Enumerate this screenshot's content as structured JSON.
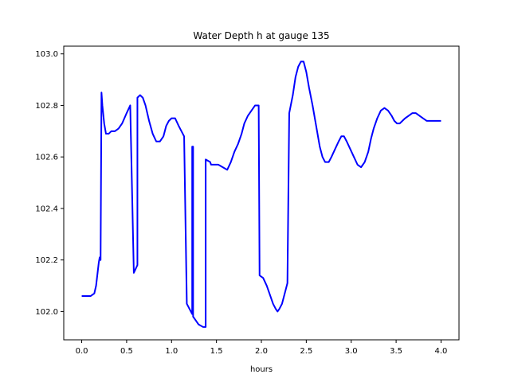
{
  "chart_data": {
    "type": "line",
    "title": "Water Depth h at gauge 135",
    "xlabel": "hours",
    "ylabel": "",
    "xlim": [
      -0.2,
      4.2
    ],
    "ylim": [
      101.89,
      103.03
    ],
    "xticks": [
      0.0,
      0.5,
      1.0,
      1.5,
      2.0,
      2.5,
      3.0,
      3.5,
      4.0
    ],
    "xtick_labels": [
      "0.0",
      "0.5",
      "1.0",
      "1.5",
      "2.0",
      "2.5",
      "3.0",
      "3.5",
      "4.0"
    ],
    "yticks": [
      102.0,
      102.2,
      102.4,
      102.6,
      102.8,
      103.0
    ],
    "ytick_labels": [
      "102.0",
      "102.2",
      "102.4",
      "102.6",
      "102.8",
      "103.0"
    ],
    "grid": false,
    "color": "#0000ff",
    "series": [
      {
        "x": [
          0.0,
          0.1,
          0.14,
          0.16,
          0.19,
          0.2,
          0.21,
          0.22,
          0.22,
          0.23,
          0.25,
          0.27,
          0.3,
          0.33,
          0.37,
          0.41,
          0.45,
          0.5,
          0.54,
          0.58,
          0.58,
          0.62,
          0.62,
          0.65,
          0.68,
          0.71,
          0.75,
          0.79,
          0.83,
          0.87,
          0.91,
          0.94,
          0.97,
          1.0,
          1.04,
          1.08,
          1.11,
          1.14,
          1.17,
          1.17,
          1.2,
          1.23,
          1.23,
          1.24,
          1.24,
          1.26,
          1.3,
          1.35,
          1.37,
          1.38,
          1.38,
          1.43,
          1.44,
          1.47,
          1.52,
          1.57,
          1.62,
          1.66,
          1.7,
          1.74,
          1.78,
          1.81,
          1.85,
          1.89,
          1.93,
          1.97,
          1.98,
          2.02,
          2.06,
          2.1,
          2.13,
          2.16,
          2.18,
          2.2,
          2.23,
          2.26,
          2.29,
          2.31,
          2.31,
          2.35,
          2.38,
          2.41,
          2.44,
          2.47,
          2.5,
          2.53,
          2.57,
          2.61,
          2.65,
          2.68,
          2.71,
          2.75,
          2.78,
          2.82,
          2.86,
          2.89,
          2.92,
          2.95,
          2.99,
          3.03,
          3.07,
          3.11,
          3.15,
          3.19,
          3.22,
          3.25,
          3.29,
          3.33,
          3.37,
          3.41,
          3.45,
          3.48,
          3.51,
          3.54,
          3.57,
          3.6,
          3.64,
          3.68,
          3.72,
          3.76,
          3.8,
          3.84,
          3.88,
          3.92,
          3.96,
          4.0
        ],
        "y": [
          102.06,
          102.06,
          102.07,
          102.1,
          102.19,
          102.21,
          102.2,
          102.85,
          102.85,
          102.8,
          102.73,
          102.69,
          102.69,
          102.7,
          102.7,
          102.71,
          102.73,
          102.77,
          102.8,
          102.15,
          102.15,
          102.18,
          102.83,
          102.84,
          102.83,
          102.8,
          102.74,
          102.69,
          102.66,
          102.66,
          102.68,
          102.72,
          102.74,
          102.75,
          102.75,
          102.72,
          102.7,
          102.68,
          102.03,
          102.03,
          102.01,
          101.99,
          102.64,
          102.64,
          101.98,
          101.97,
          101.95,
          101.94,
          101.94,
          101.94,
          102.59,
          102.58,
          102.57,
          102.57,
          102.57,
          102.56,
          102.55,
          102.58,
          102.62,
          102.65,
          102.69,
          102.73,
          102.76,
          102.78,
          102.8,
          102.8,
          102.14,
          102.13,
          102.1,
          102.06,
          102.03,
          102.01,
          102.0,
          102.01,
          102.03,
          102.07,
          102.11,
          102.77,
          102.77,
          102.84,
          102.91,
          102.95,
          102.97,
          102.97,
          102.93,
          102.87,
          102.8,
          102.72,
          102.64,
          102.6,
          102.58,
          102.58,
          102.6,
          102.63,
          102.66,
          102.68,
          102.68,
          102.66,
          102.63,
          102.6,
          102.57,
          102.56,
          102.58,
          102.62,
          102.67,
          102.71,
          102.75,
          102.78,
          102.79,
          102.78,
          102.76,
          102.74,
          102.73,
          102.73,
          102.74,
          102.75,
          102.76,
          102.77,
          102.77,
          102.76,
          102.75,
          102.74,
          102.74,
          102.74,
          102.74,
          102.74
        ]
      }
    ]
  }
}
